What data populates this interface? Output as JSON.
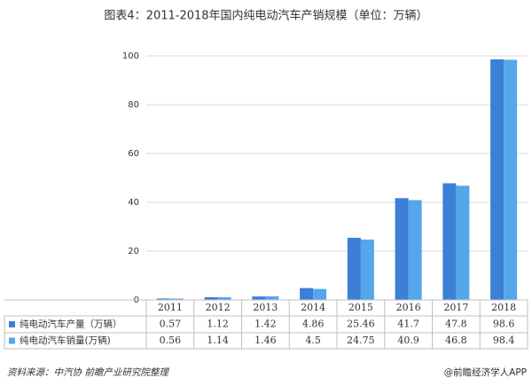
{
  "chart_data": {
    "type": "bar",
    "title": "图表4：2011-2018年国内纯电动汽车产销规模（单位：万辆）",
    "categories": [
      "2011",
      "2012",
      "2013",
      "2014",
      "2015",
      "2016",
      "2017",
      "2018"
    ],
    "series": [
      {
        "name": "纯电动汽车产量（万辆）",
        "color": "#3b7fd6",
        "values": [
          0.57,
          1.12,
          1.42,
          4.86,
          25.46,
          41.7,
          47.8,
          98.6
        ]
      },
      {
        "name": "纯电动汽车销量(万辆)",
        "color": "#55a6ea",
        "values": [
          0.56,
          1.14,
          1.46,
          4.5,
          24.75,
          40.9,
          46.8,
          98.4
        ]
      }
    ],
    "ylim": [
      0,
      100
    ],
    "yticks": [
      0,
      20,
      40,
      60,
      80,
      100
    ],
    "grid": true,
    "source": "资料来源：中汽协 前瞻产业研究院整理",
    "credit": "@前瞻经济学人APP"
  }
}
